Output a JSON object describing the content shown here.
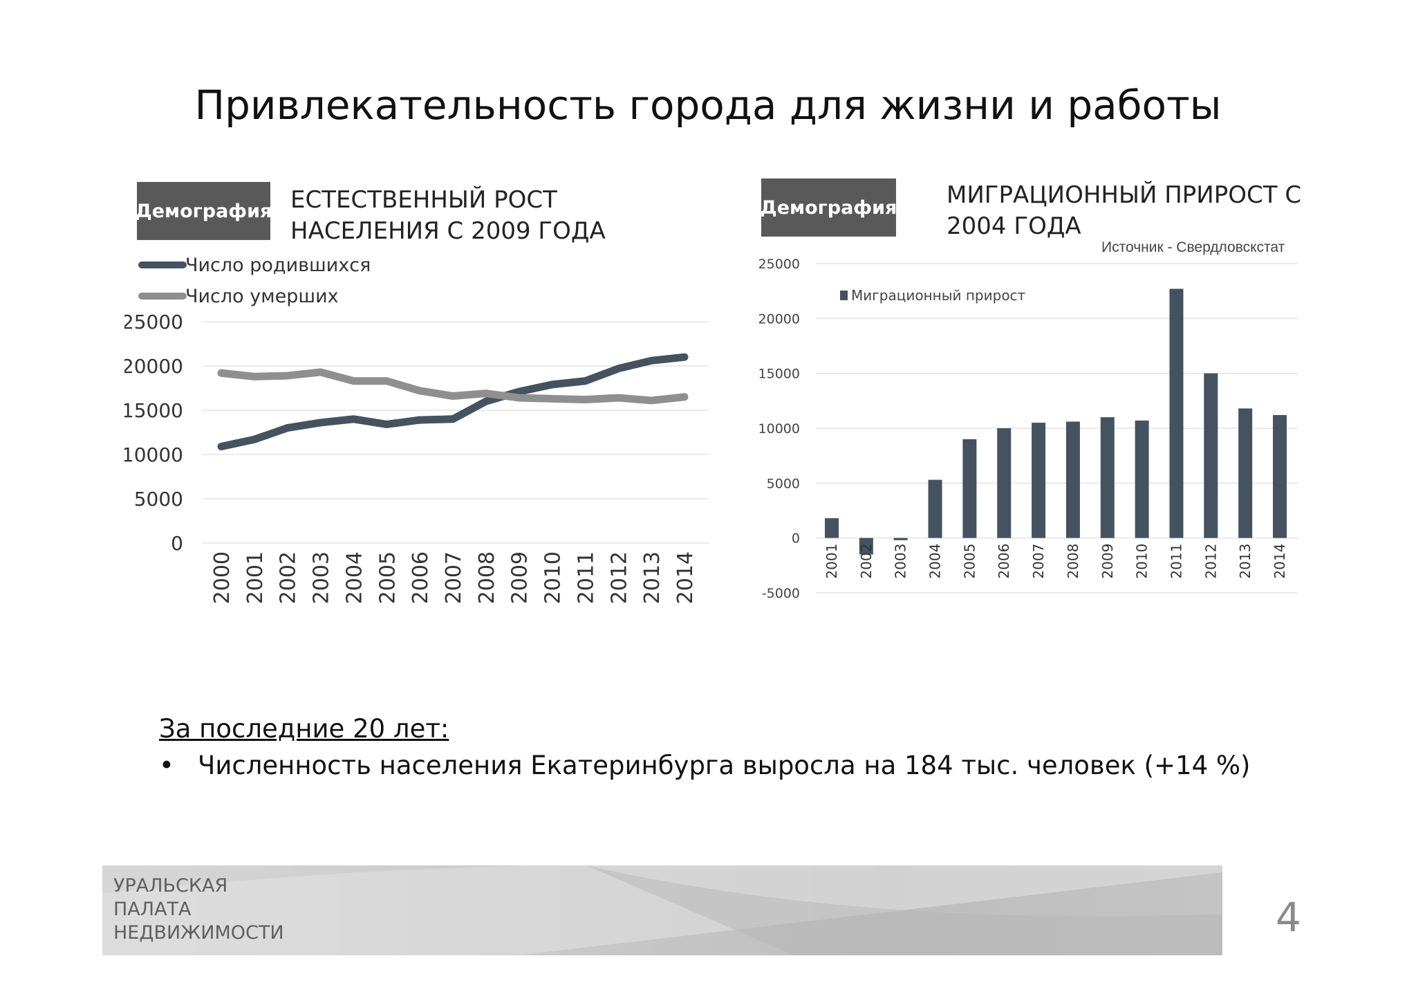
{
  "slide": {
    "title": "Привлекательность города для жизни и работы",
    "page_number": "4"
  },
  "left_chart": {
    "badge": "Демография",
    "heading_line1": "ЕСТЕСТВЕННЫЙ РОСТ",
    "heading_line2": "НАСЕЛЕНИЯ С 2009 ГОДА"
  },
  "right_chart": {
    "badge": "Демография",
    "heading_line1": "МИГРАЦИОННЫЙ ПРИРОСТ С",
    "heading_line2": "2004 ГОДА",
    "source": "Источник - Свердловскстат"
  },
  "summary": {
    "heading": "За последние 20 лет:",
    "bullet_symbol": "•",
    "bullet": "Численность населения Екатеринбурга выросла на 184 тыс. человек (+14 %)"
  },
  "footer": {
    "org_lines": [
      "УРАЛЬСКАЯ",
      "ПАЛАТА",
      "НЕДВИЖИМОСТИ"
    ]
  },
  "colors": {
    "series_dark": "#44535f",
    "series_light": "#8f8f8f",
    "badge_bg": "#595959",
    "grid": "#e3e3e3"
  },
  "chart_data": [
    {
      "type": "line",
      "x": [
        "2000",
        "2001",
        "2002",
        "2003",
        "2004",
        "2005",
        "2006",
        "2007",
        "2008",
        "2009",
        "2010",
        "2011",
        "2012",
        "2013",
        "2014"
      ],
      "series": [
        {
          "name": "Число родившихся",
          "values": [
            10900,
            11700,
            13000,
            13600,
            14000,
            13400,
            13900,
            14000,
            16000,
            17100,
            17900,
            18300,
            19700,
            20600,
            21000
          ]
        },
        {
          "name": "Число умерших",
          "values": [
            19200,
            18800,
            18900,
            19300,
            18300,
            18300,
            17200,
            16600,
            16900,
            16400,
            16300,
            16200,
            16400,
            16100,
            16500
          ]
        }
      ],
      "ylim": [
        0,
        25000
      ],
      "yticks": [
        0,
        5000,
        10000,
        15000,
        20000,
        25000
      ],
      "grid": true,
      "legend_position": "top-left"
    },
    {
      "type": "bar",
      "categories": [
        "2001",
        "2002",
        "2003",
        "2004",
        "2005",
        "2006",
        "2007",
        "2008",
        "2009",
        "2010",
        "2011",
        "2012",
        "2013",
        "2014"
      ],
      "series": [
        {
          "name": "Миграционный прирост",
          "values": [
            1800,
            -1500,
            -200,
            5300,
            9000,
            10000,
            10500,
            10600,
            11000,
            10700,
            22700,
            15000,
            11800,
            11200
          ]
        }
      ],
      "ylim": [
        -5000,
        25000
      ],
      "yticks": [
        -5000,
        0,
        5000,
        10000,
        15000,
        20000,
        25000
      ],
      "grid": true,
      "legend_position": "top-left"
    }
  ]
}
